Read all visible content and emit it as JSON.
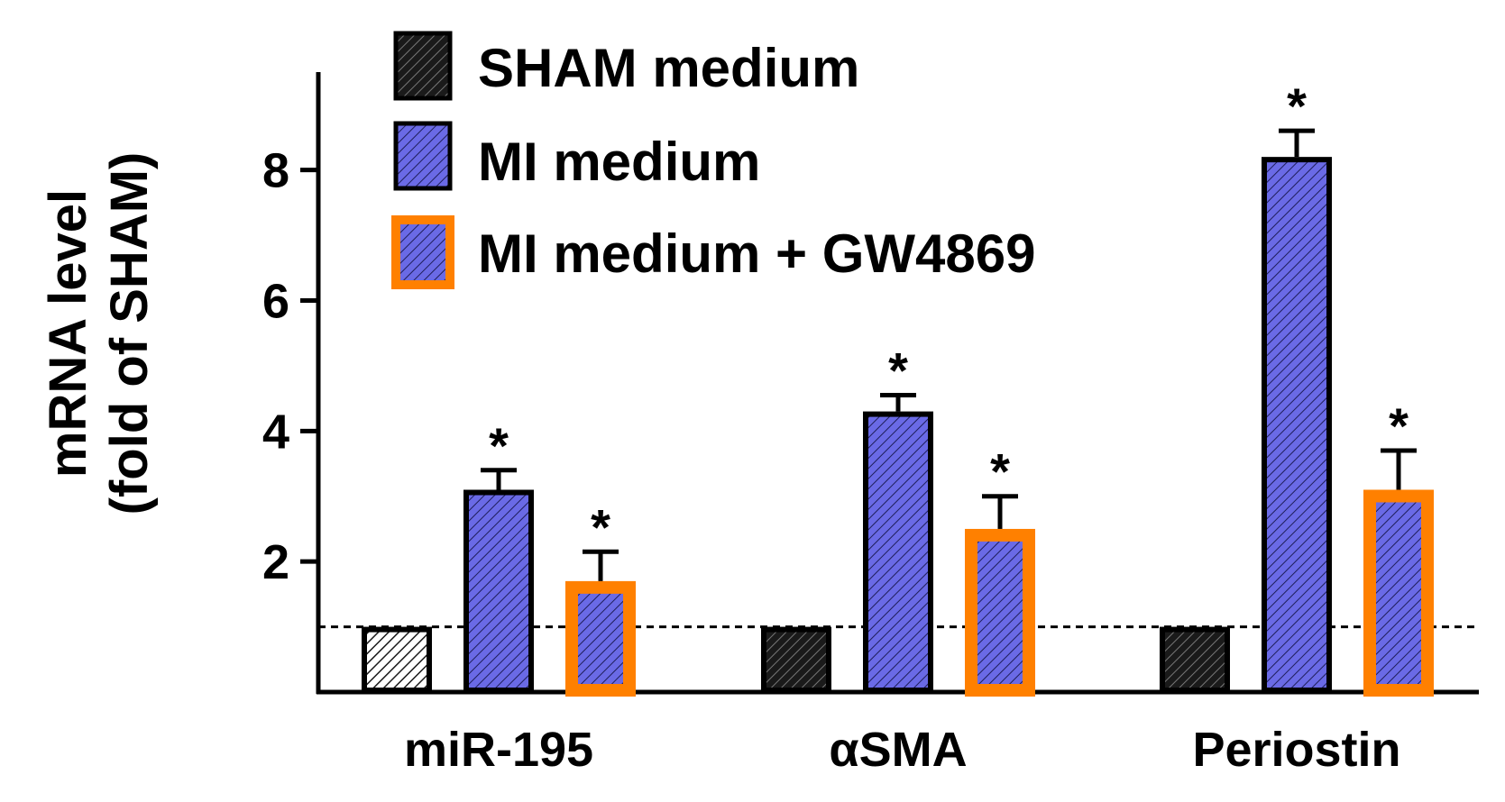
{
  "chart_data": {
    "type": "bar",
    "ylabel_lines": [
      "mRNA level",
      "(fold of SHAM)"
    ],
    "xlabel": "",
    "ylim": [
      0,
      9.5
    ],
    "yticks": [
      2,
      4,
      6,
      8
    ],
    "yticks_labels": [
      "2",
      "4",
      "6",
      "8"
    ],
    "categories": [
      "miR-195",
      "αSMA",
      "Periostin"
    ],
    "reference_line": 1,
    "series": [
      {
        "name": "SHAM medium",
        "values": [
          1,
          1,
          1
        ],
        "errors": [
          0,
          0,
          0
        ],
        "significant": [
          false,
          false,
          false
        ]
      },
      {
        "name": "MI medium",
        "values": [
          3.1,
          4.3,
          8.2
        ],
        "errors": [
          0.3,
          0.25,
          0.4
        ],
        "significant": [
          true,
          true,
          true
        ]
      },
      {
        "name": "MI medium + GW4869",
        "values": [
          1.7,
          2.5,
          3.1
        ],
        "errors": [
          0.45,
          0.5,
          0.6
        ],
        "significant": [
          true,
          true,
          true
        ]
      }
    ],
    "significance_marker": "*",
    "legend_position": "top"
  },
  "colors": {
    "sham_fill": "#1a1a1a",
    "mi_fill": "#5b5bd6",
    "gw_fill": "#5b5bd6",
    "gw_border": "#ff8000",
    "axis": "#000000"
  }
}
